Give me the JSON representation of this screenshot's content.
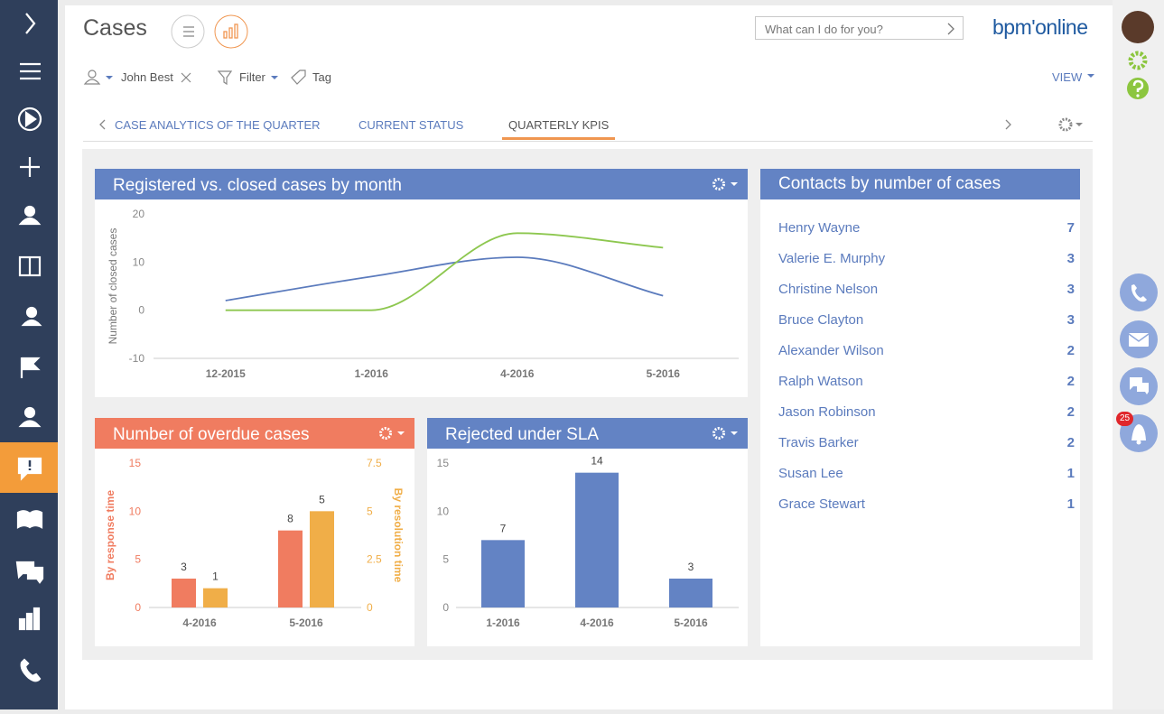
{
  "header": {
    "title": "Cases",
    "search_placeholder": "What can I do for you?",
    "logo": "bpm'online"
  },
  "filters": {
    "user": "John Best",
    "filter": "Filter",
    "tag": "Tag",
    "view": "VIEW"
  },
  "tabs": [
    "CASE ANALYTICS OF THE QUARTER",
    "CURRENT STATUS",
    "QUARTERLY KPIS"
  ],
  "active_tab": 2,
  "notifications": {
    "count": "25"
  },
  "chart_data": [
    {
      "type": "line",
      "title": "Registered vs. closed cases by month",
      "header_color": "#6383c4",
      "y_label": "Number of closed cases",
      "categories": [
        "12-2015",
        "1-2016",
        "4-2016",
        "5-2016"
      ],
      "series": [
        {
          "color": "#5b7bbd",
          "values": [
            2,
            7,
            11,
            3
          ]
        },
        {
          "color": "#8dc74f",
          "values": [
            0,
            0,
            16,
            13
          ]
        }
      ],
      "ylim": [
        -10,
        20
      ],
      "yticks": [
        -10,
        0,
        10,
        20
      ],
      "grid": false
    },
    {
      "type": "bar",
      "title": "Number of overdue cases",
      "header_color": "#f07c60",
      "categories": [
        "4-2016",
        "5-2016"
      ],
      "series": [
        {
          "name": "By response time",
          "color": "#f07c60",
          "values": [
            3,
            8
          ]
        },
        {
          "name": "By resolution time",
          "color": "#f0ae48",
          "values": [
            1,
            5
          ],
          "axis": "y2"
        }
      ],
      "ylim": [
        0,
        15
      ],
      "yticks": [
        0,
        5,
        10,
        15
      ],
      "y2lim": [
        0,
        7.5
      ],
      "y2ticks": [
        0,
        2.5,
        5,
        7.5
      ],
      "grid": false,
      "data_labels": true
    },
    {
      "type": "bar",
      "title": "Rejected under SLA",
      "header_color": "#6383c4",
      "categories": [
        "1-2016",
        "4-2016",
        "5-2016"
      ],
      "series": [
        {
          "color": "#6383c4",
          "values": [
            7,
            14,
            3
          ]
        }
      ],
      "ylim": [
        0,
        15
      ],
      "yticks": [
        0,
        5,
        10,
        15
      ],
      "grid": false,
      "data_labels": true
    }
  ],
  "contacts": {
    "title": "Contacts by number of cases",
    "rows": [
      {
        "name": "Henry Wayne",
        "count": "7"
      },
      {
        "name": "Valerie E. Murphy",
        "count": "3"
      },
      {
        "name": "Christine Nelson",
        "count": "3"
      },
      {
        "name": "Bruce Clayton",
        "count": "3"
      },
      {
        "name": "Alexander Wilson",
        "count": "2"
      },
      {
        "name": "Ralph Watson",
        "count": "2"
      },
      {
        "name": "Jason Robinson",
        "count": "2"
      },
      {
        "name": "Travis Barker",
        "count": "2"
      },
      {
        "name": "Susan Lee",
        "count": "1"
      },
      {
        "name": "Grace Stewart",
        "count": "1"
      }
    ]
  }
}
